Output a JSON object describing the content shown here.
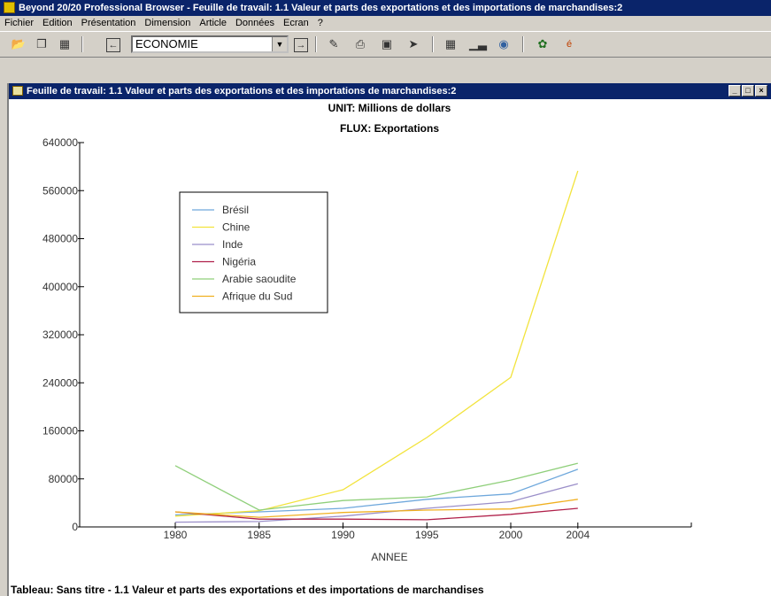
{
  "app": {
    "title": "Beyond 20/20 Professional Browser - Feuille de travail: 1.1  Valeur et parts des exportations et des importations de marchandises:2"
  },
  "menu": [
    "Fichier",
    "Edition",
    "Présentation",
    "Dimension",
    "Article",
    "Données",
    "Ecran",
    "?"
  ],
  "toolbar": {
    "dimension_value": "ECONOMIE",
    "icons": [
      "open-icon",
      "copy-icon",
      "table-icon",
      "back-arrow-icon",
      "forward-arrow-icon",
      "pencil-icon",
      "print-icon",
      "frame-icon",
      "navigate-icon",
      "grid-view-icon",
      "bar-chart-icon",
      "map-icon",
      "traffic-icon",
      "language-icon"
    ]
  },
  "worksheet": {
    "title": "Feuille de travail: 1.1  Valeur et parts des exportations et des importations de marchandises:2",
    "caption": "Tableau: Sans titre - 1.1  Valeur et parts des exportations et des importations de marchandises"
  },
  "colors": {
    "titlebar": "#0a246a",
    "bresil": "#6fa8dc",
    "chine": "#f2e33c",
    "inde": "#9b8fc9",
    "nigeria": "#b0204a",
    "arabie": "#8fcf7a",
    "afrique": "#f0b020"
  },
  "chart_data": {
    "type": "line",
    "title": "UNIT: Millions de dollars",
    "subtitle": "FLUX: Exportations",
    "xlabel": "ANNEE",
    "ylabel": "",
    "x": [
      1980,
      1985,
      1990,
      1995,
      2000,
      2004
    ],
    "xlim": [
      1980,
      2005
    ],
    "ylim": [
      0,
      640000
    ],
    "yticks": [
      0,
      80000,
      160000,
      240000,
      320000,
      400000,
      480000,
      560000,
      640000
    ],
    "ytick_labels": [
      "0",
      "80000",
      "160000",
      "240000",
      "320000",
      "400000",
      "480000",
      "560000",
      "640000"
    ],
    "xtick_labels": [
      "1980",
      "1985",
      "1990",
      "1995",
      "2000",
      "2004"
    ],
    "legend_position": "top-left",
    "grid": false,
    "series": [
      {
        "name": "Brésil",
        "color": "#6fa8dc",
        "values": [
          20000,
          25000,
          31000,
          46000,
          55000,
          96000
        ]
      },
      {
        "name": "Chine",
        "color": "#f2e33c",
        "values": [
          18000,
          27000,
          62000,
          149000,
          249000,
          593000
        ]
      },
      {
        "name": "Inde",
        "color": "#9b8fc9",
        "values": [
          8000,
          9000,
          18000,
          31000,
          42000,
          72000
        ]
      },
      {
        "name": "Nigéria",
        "color": "#b0204a",
        "values": [
          25000,
          13000,
          13000,
          12000,
          21000,
          31000
        ]
      },
      {
        "name": "Arabie saoudite",
        "color": "#8fcf7a",
        "values": [
          102000,
          28000,
          44000,
          50000,
          78000,
          106000
        ]
      },
      {
        "name": "Afrique du Sud",
        "color": "#f0b020",
        "values": [
          25000,
          16000,
          24000,
          28000,
          30000,
          46000
        ]
      }
    ]
  }
}
